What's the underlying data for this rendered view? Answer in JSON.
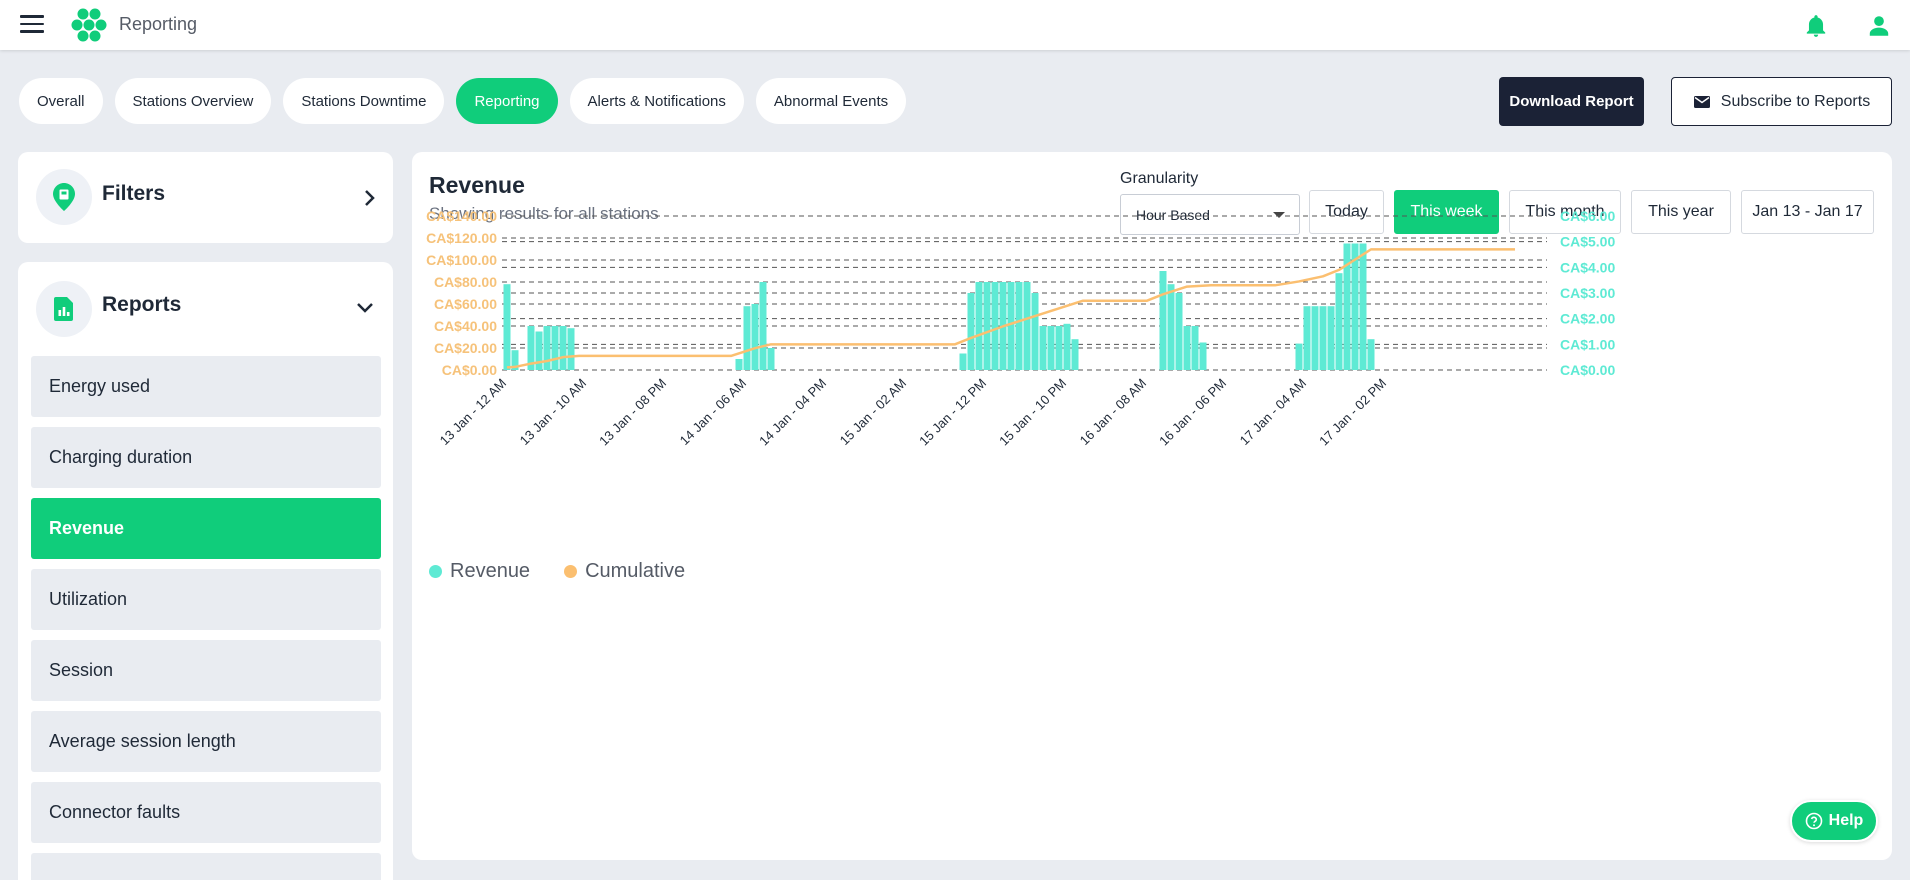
{
  "header": {
    "app_title": "Reporting"
  },
  "tabs": [
    {
      "label": "Overall",
      "active": false
    },
    {
      "label": "Stations Overview",
      "active": false
    },
    {
      "label": "Stations Downtime",
      "active": false
    },
    {
      "label": "Reporting",
      "active": true
    },
    {
      "label": "Alerts & Notifications",
      "active": false
    },
    {
      "label": "Abnormal Events",
      "active": false
    }
  ],
  "actions": {
    "download_label": "Download Report",
    "subscribe_label": "Subscribe to Reports"
  },
  "sidebar": {
    "filters_title": "Filters",
    "reports_title": "Reports",
    "report_items": [
      {
        "label": "Energy used",
        "active": false
      },
      {
        "label": "Charging duration",
        "active": false
      },
      {
        "label": "Revenue",
        "active": true
      },
      {
        "label": "Utilization",
        "active": false
      },
      {
        "label": "Session",
        "active": false
      },
      {
        "label": "Average session length",
        "active": false
      },
      {
        "label": "Connector faults",
        "active": false
      }
    ]
  },
  "main": {
    "title": "Revenue",
    "subtitle": "Showing results for all stations",
    "granularity_label": "Granularity",
    "granularity_value": "Hour Based",
    "range_buttons": [
      {
        "label": "Today",
        "active": false
      },
      {
        "label": "This week",
        "active": true
      },
      {
        "label": "This month",
        "active": false
      },
      {
        "label": "This year",
        "active": false
      }
    ],
    "date_range": "Jan 13 - Jan 17"
  },
  "colors": {
    "accent": "#10cd7b",
    "revenue": "#5eead4",
    "cumulative": "#fbbf70",
    "left_axis": "#f6c27a",
    "right_axis": "#5eead4",
    "dark": "#1b2236"
  },
  "chart_data": {
    "type": "bar",
    "x_tick_labels": [
      "13 Jan - 12 AM",
      "13 Jan - 10 AM",
      "13 Jan - 08 PM",
      "14 Jan - 06 AM",
      "14 Jan - 04 PM",
      "15 Jan - 02 AM",
      "15 Jan - 12 PM",
      "15 Jan - 10 PM",
      "16 Jan - 08 AM",
      "16 Jan - 06 PM",
      "17 Jan - 04 AM",
      "17 Jan - 02 PM"
    ],
    "x_unit": "hours since 13 Jan 12 AM",
    "y_left": {
      "ticks": [
        "CA$0.00",
        "CA$20.00",
        "CA$40.00",
        "CA$60.00",
        "CA$80.00",
        "CA$100.00",
        "CA$120.00",
        "CA$140.00"
      ],
      "ylim": [
        0,
        140
      ]
    },
    "y_right": {
      "ticks": [
        "CA$0.00",
        "CA$1.00",
        "CA$2.00",
        "CA$3.00",
        "CA$4.00",
        "CA$5.00",
        "CA$6.00"
      ],
      "ylim": [
        0,
        6
      ]
    },
    "grid": true,
    "legend_position": "bottom-left",
    "series": [
      {
        "name": "Revenue",
        "type": "bar",
        "axis": "left",
        "points": [
          [
            0,
            78
          ],
          [
            1,
            18
          ],
          [
            3,
            40
          ],
          [
            4,
            35
          ],
          [
            5,
            40
          ],
          [
            6,
            40
          ],
          [
            7,
            40
          ],
          [
            8,
            38
          ],
          [
            29,
            10
          ],
          [
            30,
            58
          ],
          [
            31,
            60
          ],
          [
            32,
            80
          ],
          [
            33,
            20
          ],
          [
            57,
            15
          ],
          [
            58,
            70
          ],
          [
            59,
            80
          ],
          [
            60,
            80
          ],
          [
            61,
            80
          ],
          [
            62,
            80
          ],
          [
            63,
            80
          ],
          [
            64,
            80
          ],
          [
            65,
            80
          ],
          [
            66,
            70
          ],
          [
            67,
            40
          ],
          [
            68,
            40
          ],
          [
            69,
            40
          ],
          [
            70,
            42
          ],
          [
            71,
            28
          ],
          [
            82,
            90
          ],
          [
            83,
            78
          ],
          [
            84,
            70
          ],
          [
            85,
            40
          ],
          [
            86,
            40
          ],
          [
            87,
            25
          ],
          [
            99,
            24
          ],
          [
            100,
            58
          ],
          [
            101,
            58
          ],
          [
            102,
            58
          ],
          [
            103,
            58
          ],
          [
            104,
            88
          ],
          [
            105,
            115
          ],
          [
            106,
            115
          ],
          [
            107,
            115
          ],
          [
            108,
            28
          ]
        ]
      },
      {
        "name": "Cumulative",
        "type": "line",
        "axis": "right",
        "points": [
          [
            0,
            0.1
          ],
          [
            1,
            0.12
          ],
          [
            3,
            0.25
          ],
          [
            5,
            0.35
          ],
          [
            7,
            0.5
          ],
          [
            9,
            0.55
          ],
          [
            20,
            0.55
          ],
          [
            28,
            0.55
          ],
          [
            31,
            0.85
          ],
          [
            33,
            1.0
          ],
          [
            45,
            1.0
          ],
          [
            56,
            1.0
          ],
          [
            58,
            1.25
          ],
          [
            62,
            1.7
          ],
          [
            66,
            2.1
          ],
          [
            70,
            2.5
          ],
          [
            72,
            2.7
          ],
          [
            80,
            2.7
          ],
          [
            82,
            2.95
          ],
          [
            85,
            3.25
          ],
          [
            88,
            3.3
          ],
          [
            96,
            3.3
          ],
          [
            99,
            3.45
          ],
          [
            102,
            3.65
          ],
          [
            104,
            3.9
          ],
          [
            106,
            4.3
          ],
          [
            108,
            4.7
          ],
          [
            126,
            4.7
          ]
        ]
      }
    ]
  }
}
